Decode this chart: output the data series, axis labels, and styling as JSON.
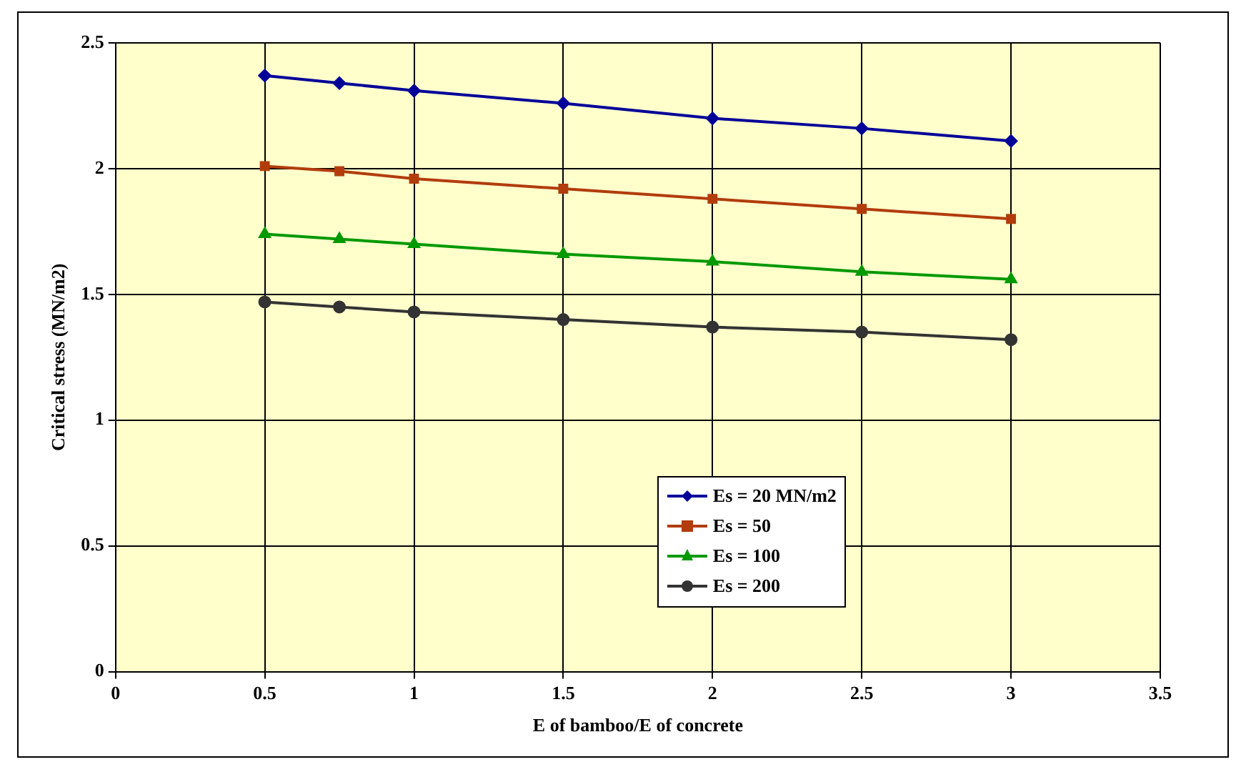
{
  "chart_data": {
    "type": "line",
    "xlabel": "E of bamboo/E of concrete",
    "ylabel": "Critical stress (MN/m2)",
    "x": [
      0.5,
      0.75,
      1,
      1.5,
      2,
      2.5,
      3
    ],
    "series": [
      {
        "name": "Es = 20 MN/m2",
        "color": "#000099",
        "marker": "diamond",
        "values": [
          2.37,
          2.34,
          2.31,
          2.26,
          2.2,
          2.16,
          2.11
        ]
      },
      {
        "name": "Es = 50",
        "color": "#b23c0c",
        "marker": "square",
        "values": [
          2.01,
          1.99,
          1.96,
          1.92,
          1.88,
          1.84,
          1.8
        ]
      },
      {
        "name": "Es = 100",
        "color": "#009900",
        "marker": "triangle",
        "values": [
          1.74,
          1.72,
          1.7,
          1.66,
          1.63,
          1.59,
          1.56
        ]
      },
      {
        "name": "Es = 200",
        "color": "#333333",
        "marker": "circle",
        "values": [
          1.47,
          1.45,
          1.43,
          1.4,
          1.37,
          1.35,
          1.32
        ]
      }
    ],
    "xlim": [
      0,
      3.5
    ],
    "xticks": [
      0,
      0.5,
      1,
      1.5,
      2,
      2.5,
      3,
      3.5
    ],
    "ylim": [
      0,
      2.5
    ],
    "yticks": [
      0,
      0.5,
      1,
      1.5,
      2,
      2.5
    ],
    "grid": true,
    "legend": "bottom",
    "line_style": "solid"
  }
}
